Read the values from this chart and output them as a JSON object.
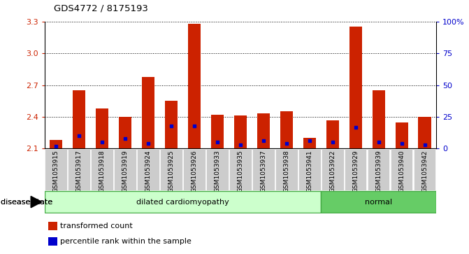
{
  "title": "GDS4772 / 8175193",
  "samples": [
    "GSM1053915",
    "GSM1053917",
    "GSM1053918",
    "GSM1053919",
    "GSM1053924",
    "GSM1053925",
    "GSM1053926",
    "GSM1053933",
    "GSM1053935",
    "GSM1053937",
    "GSM1053938",
    "GSM1053941",
    "GSM1053922",
    "GSM1053929",
    "GSM1053939",
    "GSM1053940",
    "GSM1053942"
  ],
  "transformed_count": [
    2.18,
    2.65,
    2.48,
    2.4,
    2.78,
    2.55,
    3.28,
    2.42,
    2.41,
    2.43,
    2.45,
    2.2,
    2.37,
    3.25,
    2.65,
    2.35,
    2.4
  ],
  "percentile_rank": [
    2,
    10,
    5,
    8,
    4,
    18,
    18,
    5,
    3,
    6,
    4,
    6,
    5,
    17,
    5,
    4,
    3
  ],
  "disease_groups": [
    {
      "label": "dilated cardiomyopathy",
      "start": 0,
      "end": 11,
      "color": "#ccffcc",
      "edge_color": "#44aa44"
    },
    {
      "label": "normal",
      "start": 12,
      "end": 16,
      "color": "#66cc66",
      "edge_color": "#44aa44"
    }
  ],
  "ylim_left": [
    2.1,
    3.3
  ],
  "ylim_right": [
    0,
    100
  ],
  "yticks_left": [
    2.1,
    2.4,
    2.7,
    3.0,
    3.3
  ],
  "yticks_right": [
    0,
    25,
    50,
    75,
    100
  ],
  "bar_color": "#cc2200",
  "dot_color": "#0000cc",
  "sample_bg_color": "#cccccc",
  "plot_bg_color": "#ffffff",
  "legend_items": [
    {
      "color": "#cc2200",
      "label": "transformed count"
    },
    {
      "color": "#0000cc",
      "label": "percentile rank within the sample"
    }
  ]
}
